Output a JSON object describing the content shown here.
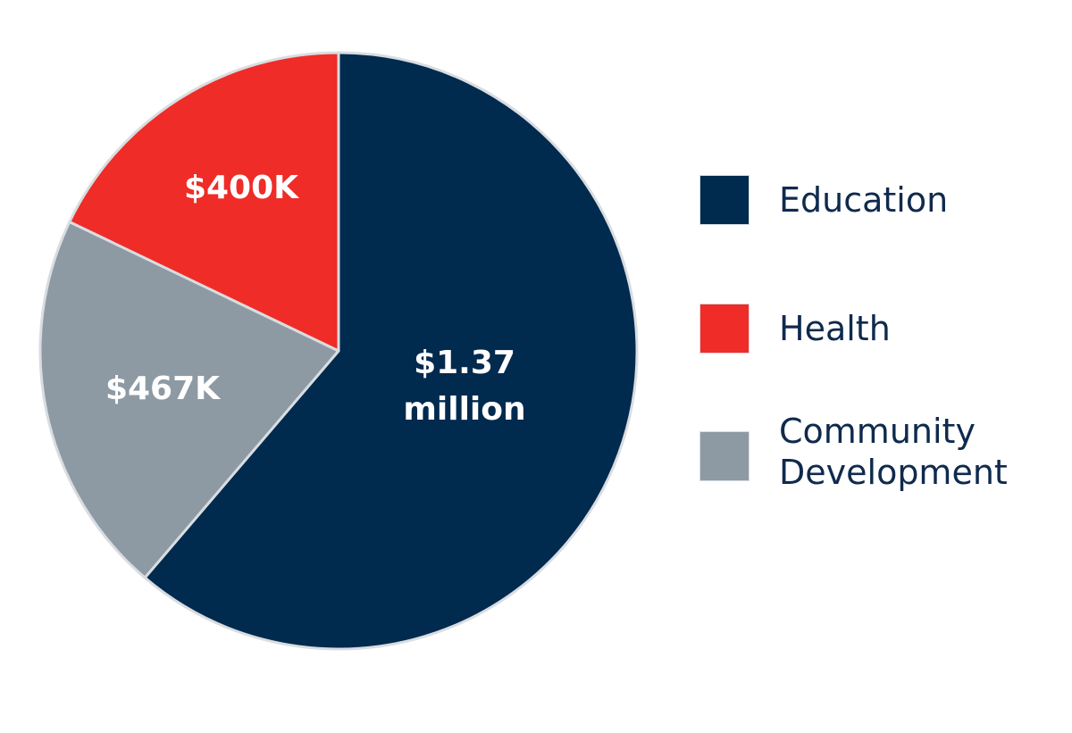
{
  "chart_data": {
    "type": "pie",
    "title": "",
    "slices": [
      {
        "name": "Education",
        "value": 1370000,
        "label": "$1.37\nmillion",
        "color": "#002a4e"
      },
      {
        "name": "Community\nDevelopment",
        "value": 467000,
        "label": "$467K",
        "color": "#8e9aa3"
      },
      {
        "name": "Health",
        "value": 400000,
        "label": "$400K",
        "color": "#ef2c27"
      }
    ],
    "legend": {
      "position": "right",
      "items": [
        {
          "label": "Education",
          "color": "#002a4e"
        },
        {
          "label": "Health",
          "color": "#ef2c27"
        },
        {
          "label": "Community\nDevelopment",
          "color": "#8e9aa3"
        }
      ]
    }
  },
  "colors": {
    "label_text": "#ffffff",
    "legend_text": "#0f2a4d",
    "slice_border": "#d9dde1"
  }
}
